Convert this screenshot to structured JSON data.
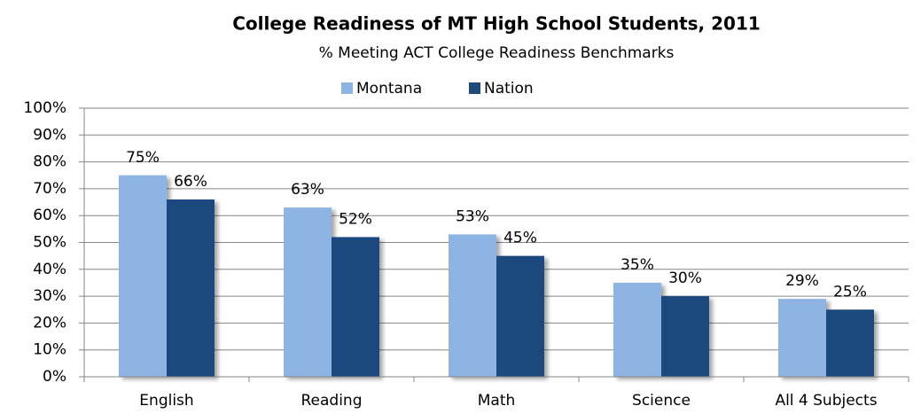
{
  "chart_data": {
    "type": "bar",
    "title": "College Readiness of MT High School Students, 2011",
    "subtitle": "% Meeting ACT College Readiness Benchmarks",
    "categories": [
      "English",
      "Reading",
      "Math",
      "Science",
      "All 4 Subjects"
    ],
    "series": [
      {
        "name": "Montana",
        "color": "#8eb4e3",
        "values": [
          75,
          63,
          53,
          35,
          29
        ],
        "value_labels": [
          "75%",
          "63%",
          "53%",
          "35%",
          "29%"
        ]
      },
      {
        "name": "Nation",
        "color": "#1f497d",
        "values": [
          66,
          52,
          45,
          30,
          25
        ],
        "value_labels": [
          "66%",
          "52%",
          "45%",
          "30%",
          "25%"
        ]
      }
    ],
    "ylim": [
      0,
      100
    ],
    "yticks": [
      {
        "value": 0,
        "label": "0%"
      },
      {
        "value": 10,
        "label": "10%"
      },
      {
        "value": 20,
        "label": "20%"
      },
      {
        "value": 30,
        "label": "30%"
      },
      {
        "value": 40,
        "label": "40%"
      },
      {
        "value": 50,
        "label": "50%"
      },
      {
        "value": 60,
        "label": "60%"
      },
      {
        "value": 70,
        "label": "70%"
      },
      {
        "value": 80,
        "label": "80%"
      },
      {
        "value": 90,
        "label": "90%"
      },
      {
        "value": 100,
        "label": "100%"
      }
    ],
    "grid": true,
    "legend": "top"
  }
}
